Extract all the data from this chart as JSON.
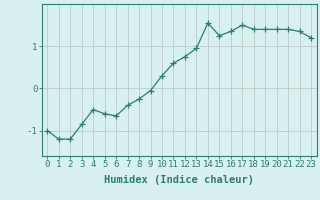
{
  "x": [
    0,
    1,
    2,
    3,
    4,
    5,
    6,
    7,
    8,
    9,
    10,
    11,
    12,
    13,
    14,
    15,
    16,
    17,
    18,
    19,
    20,
    21,
    22,
    23
  ],
  "y": [
    -1.0,
    -1.2,
    -1.2,
    -0.85,
    -0.5,
    -0.6,
    -0.65,
    -0.4,
    -0.25,
    -0.05,
    0.3,
    0.6,
    0.75,
    0.95,
    1.55,
    1.25,
    1.35,
    1.5,
    1.4,
    1.4,
    1.4,
    1.4,
    1.35,
    1.2
  ],
  "line_color": "#2e7d6e",
  "marker": "+",
  "marker_size": 4,
  "bg_color": "#d8f0f0",
  "grid_color": "#c0c8c8",
  "tick_color": "#2e7d6e",
  "xlabel": "Humidex (Indice chaleur)",
  "ylim": [
    -1.6,
    2.0
  ],
  "yticks": [
    -1,
    0,
    1
  ],
  "ytick_labels": [
    "-1",
    "0",
    "1"
  ],
  "xticks": [
    0,
    1,
    2,
    3,
    4,
    5,
    6,
    7,
    8,
    9,
    10,
    11,
    12,
    13,
    14,
    15,
    16,
    17,
    18,
    19,
    20,
    21,
    22,
    23
  ],
  "tick_fontsize": 6.5,
  "xlabel_fontsize": 7.5
}
